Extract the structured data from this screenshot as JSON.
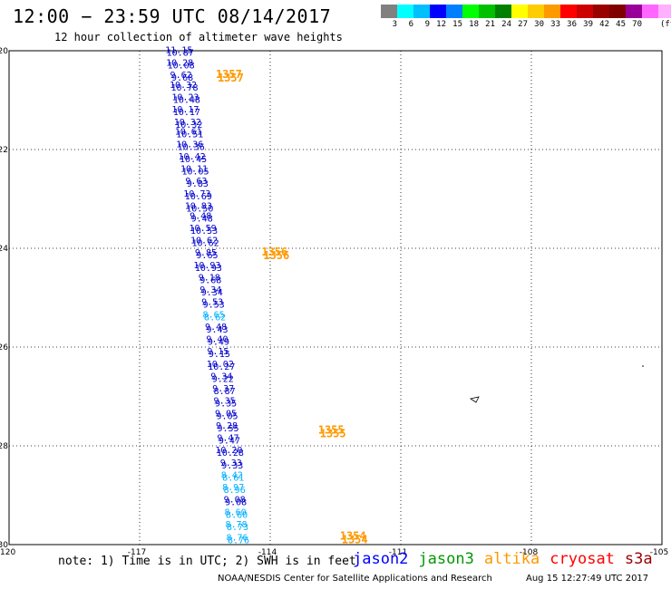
{
  "title": "12:00 − 23:59 UTC 08/14/2017",
  "subtitle": "12 hour collection of altimeter wave heights",
  "scale": {
    "unit": "(ft)",
    "colors": [
      "#808080",
      "#00ffff",
      "#00bfff",
      "#0000ff",
      "#0080ff",
      "#00ff00",
      "#00c000",
      "#008000",
      "#ffff00",
      "#ffcc00",
      "#ff9900",
      "#ff0000",
      "#cc0000",
      "#990000",
      "#800000",
      "#990099",
      "#ff66ff",
      "#ffb0ff",
      "#000000"
    ],
    "labels": [
      "3",
      "6",
      "9",
      "12",
      "15",
      "18",
      "21",
      "24",
      "27",
      "30",
      "33",
      "36",
      "39",
      "42",
      "45",
      "70"
    ]
  },
  "map": {
    "lon_range": [
      -120,
      -105
    ],
    "lat_range": [
      -30,
      -20
    ],
    "lon_ticks": [
      "-120",
      "-117",
      "-114",
      "-111",
      "-108",
      "-105"
    ],
    "lat_ticks": [
      "-20",
      "-22",
      "-24",
      "-26",
      "-28",
      "-30"
    ],
    "track": [
      {
        "lat": -20.05,
        "lon": -116.1,
        "values": [
          "11.15",
          "10.87"
        ],
        "color": "#0000cc"
      },
      {
        "lat": -20.3,
        "lon": -116.08,
        "values": [
          "10.28",
          "10.08"
        ],
        "color": "#0000cc"
      },
      {
        "lat": -20.55,
        "lon": -116.05,
        "values": [
          "9.62",
          "9.68"
        ],
        "color": "#0000cc"
      },
      {
        "lat": -20.75,
        "lon": -116.0,
        "values": [
          "10.32",
          "10.78"
        ],
        "color": "#0000cc"
      },
      {
        "lat": -21.0,
        "lon": -115.95,
        "values": [
          "10.23",
          "10.48"
        ],
        "color": "#0000cc"
      },
      {
        "lat": -21.25,
        "lon": -115.95,
        "values": [
          "10.17",
          "10.17"
        ],
        "color": "#0000cc"
      },
      {
        "lat": -21.5,
        "lon": -115.9,
        "values": [
          "10.32",
          "10.32"
        ],
        "color": "#0000cc"
      },
      {
        "lat": -21.7,
        "lon": -115.88,
        "values": [
          "10.61",
          "10.51"
        ],
        "color": "#0000cc"
      },
      {
        "lat": -21.95,
        "lon": -115.85,
        "values": [
          "10.36",
          "10.36"
        ],
        "color": "#0000cc"
      },
      {
        "lat": -22.2,
        "lon": -115.8,
        "values": [
          "10.42",
          "10.45"
        ],
        "color": "#0000cc"
      },
      {
        "lat": -22.45,
        "lon": -115.75,
        "values": [
          "10.11",
          "10.05"
        ],
        "color": "#0000cc"
      },
      {
        "lat": -22.7,
        "lon": -115.7,
        "values": [
          "9.63",
          "9.83"
        ],
        "color": "#0000cc"
      },
      {
        "lat": -22.95,
        "lon": -115.68,
        "values": [
          "10.73",
          "10.69"
        ],
        "color": "#0000cc"
      },
      {
        "lat": -23.2,
        "lon": -115.65,
        "values": [
          "10.83",
          "10.50"
        ],
        "color": "#0000cc"
      },
      {
        "lat": -23.4,
        "lon": -115.6,
        "values": [
          "9.48",
          "9.48"
        ],
        "color": "#0000cc"
      },
      {
        "lat": -23.65,
        "lon": -115.55,
        "values": [
          "10.59",
          "10.53"
        ],
        "color": "#0000cc"
      },
      {
        "lat": -23.9,
        "lon": -115.52,
        "values": [
          "10.62",
          "10.62"
        ],
        "color": "#0000cc"
      },
      {
        "lat": -24.15,
        "lon": -115.48,
        "values": [
          "9.85",
          "9.65"
        ],
        "color": "#0000cc"
      },
      {
        "lat": -24.4,
        "lon": -115.45,
        "values": [
          "10.93",
          "10.93"
        ],
        "color": "#0000cc"
      },
      {
        "lat": -24.65,
        "lon": -115.4,
        "values": [
          "9.18",
          "9.68"
        ],
        "color": "#0000cc"
      },
      {
        "lat": -24.9,
        "lon": -115.37,
        "values": [
          "9.34",
          "9.34"
        ],
        "color": "#0000cc"
      },
      {
        "lat": -25.15,
        "lon": -115.33,
        "values": [
          "9.53",
          "9.53"
        ],
        "color": "#0000cc"
      },
      {
        "lat": -25.4,
        "lon": -115.3,
        "values": [
          "8.65",
          "8.62"
        ],
        "color": "#00b0ff"
      },
      {
        "lat": -25.65,
        "lon": -115.25,
        "values": [
          "9.48",
          "9.43"
        ],
        "color": "#0000cc"
      },
      {
        "lat": -25.9,
        "lon": -115.22,
        "values": [
          "9.40",
          "9.49"
        ],
        "color": "#0000cc"
      },
      {
        "lat": -26.15,
        "lon": -115.2,
        "values": [
          "9.15",
          "9.15"
        ],
        "color": "#0000cc"
      },
      {
        "lat": -26.4,
        "lon": -115.15,
        "values": [
          "10.02",
          "10.27"
        ],
        "color": "#0000cc"
      },
      {
        "lat": -26.65,
        "lon": -115.12,
        "values": [
          "9.34",
          "9.22"
        ],
        "color": "#0000cc"
      },
      {
        "lat": -26.9,
        "lon": -115.08,
        "values": [
          "9.37",
          "8.87"
        ],
        "color": "#0000cc"
      },
      {
        "lat": -27.15,
        "lon": -115.05,
        "values": [
          "9.35",
          "9.35"
        ],
        "color": "#0000cc"
      },
      {
        "lat": -27.4,
        "lon": -115.02,
        "values": [
          "9.05",
          "9.05"
        ],
        "color": "#0000cc"
      },
      {
        "lat": -27.65,
        "lon": -115.0,
        "values": [
          "9.28",
          "9.55"
        ],
        "color": "#0000cc"
      },
      {
        "lat": -27.9,
        "lon": -114.97,
        "values": [
          "9.47",
          "9.47"
        ],
        "color": "#0000cc"
      },
      {
        "lat": -28.15,
        "lon": -114.95,
        "values": [
          "10.20",
          "10.28"
        ],
        "color": "#0000cc"
      },
      {
        "lat": -28.4,
        "lon": -114.9,
        "values": [
          "9.33",
          "9.33"
        ],
        "color": "#0000cc"
      },
      {
        "lat": -28.65,
        "lon": -114.88,
        "values": [
          "8.42",
          "8.61"
        ],
        "color": "#00b0ff"
      },
      {
        "lat": -28.9,
        "lon": -114.85,
        "values": [
          "8.97",
          "8.96"
        ],
        "color": "#00b0ff"
      },
      {
        "lat": -29.15,
        "lon": -114.82,
        "values": [
          "9.08",
          "9.08"
        ],
        "color": "#0000cc"
      },
      {
        "lat": -29.4,
        "lon": -114.8,
        "values": [
          "8.60",
          "8.60"
        ],
        "color": "#00b0ff"
      },
      {
        "lat": -29.65,
        "lon": -114.78,
        "values": [
          "8.78",
          "8.73"
        ],
        "color": "#00b0ff"
      },
      {
        "lat": -29.92,
        "lon": -114.76,
        "values": [
          "8.76",
          "8.76"
        ],
        "color": "#00b0ff"
      }
    ],
    "labels": [
      {
        "text": "1357",
        "lat": -20.55,
        "lon": -114.95,
        "color": "#ff9900"
      },
      {
        "text": "1356",
        "lat": -24.15,
        "lon": -113.9,
        "color": "#ff9900"
      },
      {
        "text": "1355",
        "lat": -27.75,
        "lon": -112.6,
        "color": "#ff9900"
      },
      {
        "text": "1354",
        "lat": -29.9,
        "lon": -112.1,
        "color": "#ff9900"
      }
    ]
  },
  "note": "note: 1) Time is in UTC; 2) SWH is in feet",
  "satellites": [
    {
      "name": "jason2",
      "color": "#0000ff"
    },
    {
      "name": "jason3",
      "color": "#009900"
    },
    {
      "name": "altika",
      "color": "#ff9900"
    },
    {
      "name": "cryosat",
      "color": "#ff0000"
    },
    {
      "name": "s3a",
      "color": "#990000"
    }
  ],
  "credit": "NOAA/NESDIS Center for Satellite Applications and Research",
  "timestamp": "Aug 15 12:27:49 UTC 2017"
}
